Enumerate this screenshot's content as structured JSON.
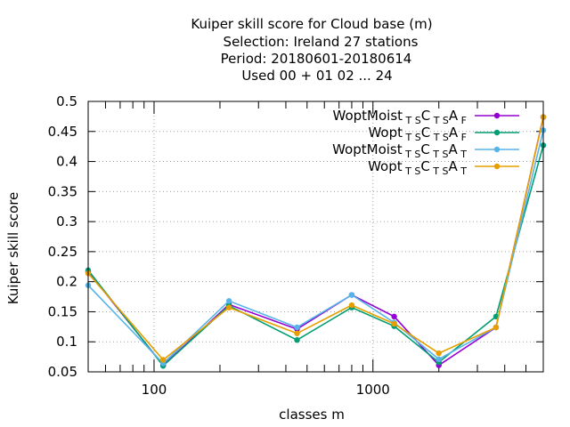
{
  "chart_data": {
    "type": "line",
    "title_lines": [
      "Kuiper skill score  for Cloud base (m)",
      "Selection: Ireland     27 stations",
      "Period: 20180601-20180614",
      "Used  00 + 01 02 ... 24"
    ],
    "xlabel": "classes m",
    "ylabel": "Kuiper skill score",
    "x_scale": "log",
    "xlim": [
      50,
      6000
    ],
    "ylim": [
      0.05,
      0.5
    ],
    "x_ticks": [
      100,
      1000
    ],
    "y_ticks": [
      0.05,
      0.1,
      0.15,
      0.2,
      0.25,
      0.3,
      0.35,
      0.4,
      0.45,
      0.5
    ],
    "grid": true,
    "legend_position": "top-right",
    "x": [
      50,
      110,
      220,
      450,
      800,
      1250,
      2000,
      3650,
      6000
    ],
    "series": [
      {
        "legend": {
          "base": "WoptMoist",
          "s1": "T S",
          "mid": "C",
          "s2": "T S",
          "end": "A",
          "s3": "F"
        },
        "color": "#9400d3",
        "values": [
          0.217,
          0.061,
          0.162,
          0.121,
          0.178,
          0.142,
          0.061,
          0.124,
          0.474
        ]
      },
      {
        "legend": {
          "base": "Wopt",
          "s1": "T S",
          "mid": "C",
          "s2": "T S",
          "end": "A",
          "s3": "F"
        },
        "color": "#009e73",
        "values": [
          0.219,
          0.06,
          0.16,
          0.103,
          0.157,
          0.126,
          0.066,
          0.142,
          0.427
        ]
      },
      {
        "legend": {
          "base": "WoptMoist",
          "s1": "T S",
          "mid": "C",
          "s2": "T S",
          "end": "A",
          "s3": "T"
        },
        "color": "#56b4e9",
        "values": [
          0.194,
          0.064,
          0.168,
          0.124,
          0.178,
          0.132,
          0.071,
          0.124,
          0.452
        ]
      },
      {
        "legend": {
          "base": "Wopt",
          "s1": "T S",
          "mid": "C",
          "s2": "T S",
          "end": "A",
          "s3": "T"
        },
        "color": "#e69f00",
        "values": [
          0.214,
          0.07,
          0.157,
          0.114,
          0.161,
          0.13,
          0.081,
          0.124,
          0.474
        ]
      }
    ]
  }
}
